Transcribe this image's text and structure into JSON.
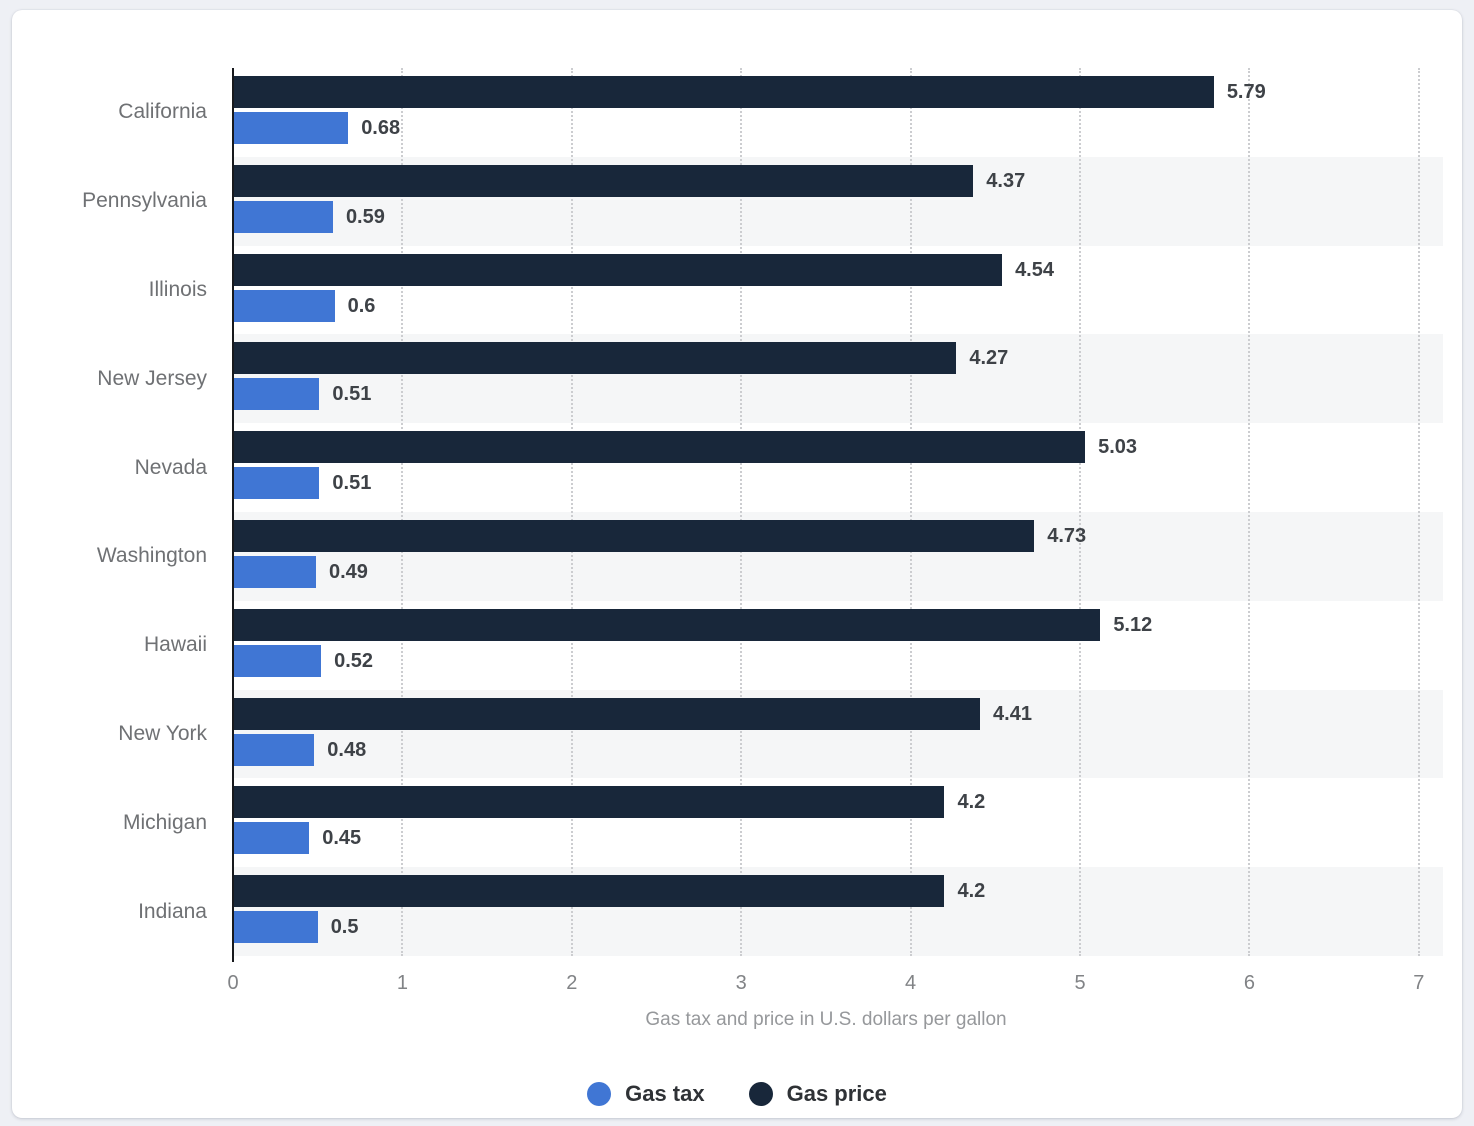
{
  "chart_data": {
    "type": "bar",
    "orientation": "horizontal",
    "categories": [
      "California",
      "Pennsylvania",
      "Illinois",
      "New Jersey",
      "Nevada",
      "Washington",
      "Hawaii",
      "New York",
      "Michigan",
      "Indiana"
    ],
    "series": [
      {
        "name": "Gas tax",
        "color": "#4076d4",
        "values": [
          0.68,
          0.59,
          0.6,
          0.51,
          0.51,
          0.49,
          0.52,
          0.48,
          0.45,
          0.5
        ],
        "labels": [
          "0.68",
          "0.59",
          "0.6",
          "0.51",
          "0.51",
          "0.49",
          "0.52",
          "0.48",
          "0.45",
          "0.5"
        ]
      },
      {
        "name": "Gas price",
        "color": "#18273a",
        "values": [
          5.79,
          4.37,
          4.54,
          4.27,
          5.03,
          4.73,
          5.12,
          4.41,
          4.2,
          4.2
        ],
        "labels": [
          "5.79",
          "4.37",
          "4.54",
          "4.27",
          "5.03",
          "4.73",
          "5.12",
          "4.41",
          "4.2",
          "4.2"
        ]
      }
    ],
    "xlabel": "Gas tax and price in U.S. dollars per gallon",
    "xlim": [
      0,
      7
    ],
    "xticks": [
      "0",
      "1",
      "2",
      "3",
      "4",
      "5",
      "6",
      "7"
    ],
    "grid": true,
    "legend_position": "bottom",
    "row_band_alternate": true
  }
}
